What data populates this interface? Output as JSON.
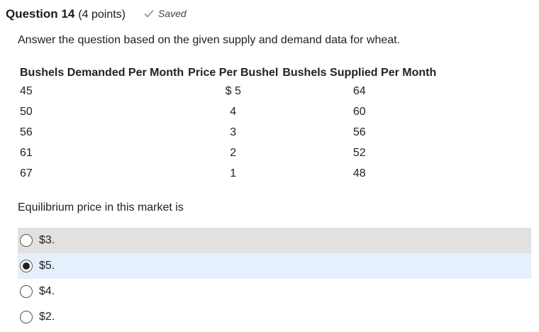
{
  "question": {
    "title": "Question 14",
    "points": "(4 points)",
    "status": "Saved",
    "prompt": "Answer the question based on the given supply and demand data for wheat.",
    "stem": "Equilibrium price in this market is"
  },
  "table": {
    "headers": [
      "Bushels Demanded Per Month",
      "Price Per Bushel",
      "Bushels Supplied Per Month"
    ],
    "rows": [
      [
        "45",
        "$ 5",
        "64"
      ],
      [
        "50",
        "4",
        "60"
      ],
      [
        "56",
        "3",
        "56"
      ],
      [
        "61",
        "2",
        "52"
      ],
      [
        "67",
        "1",
        "48"
      ]
    ]
  },
  "options": [
    {
      "label": "$3.",
      "selected": false
    },
    {
      "label": "$5.",
      "selected": true
    },
    {
      "label": "$4.",
      "selected": false
    },
    {
      "label": "$2.",
      "selected": false
    }
  ],
  "colors": {
    "hover_row": "#e1e1e1",
    "selected_row": "#e5f0fc"
  }
}
